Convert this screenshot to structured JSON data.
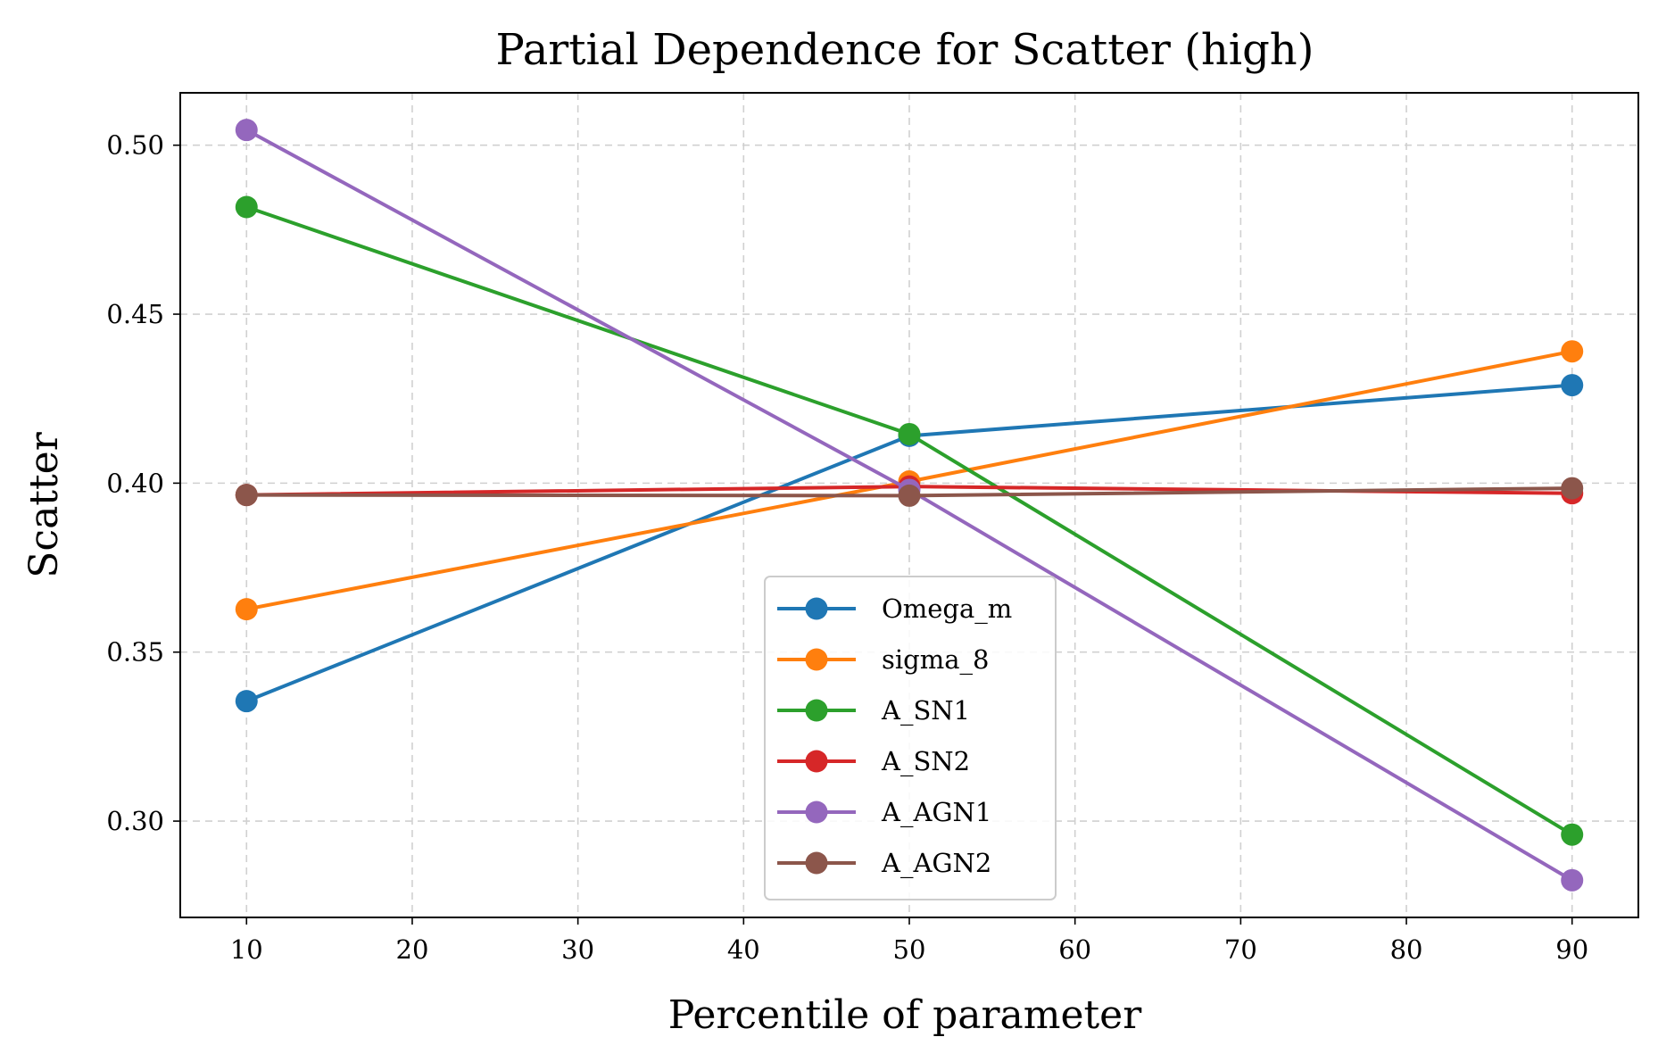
{
  "chart_data": {
    "type": "line",
    "title": "Partial Dependence for Scatter (high)",
    "xlabel": "Percentile of parameter",
    "ylabel": "Scatter",
    "x": [
      10,
      50,
      90
    ],
    "xlim": [
      6,
      94
    ],
    "ylim": [
      0.2715,
      0.5155
    ],
    "xticks": [
      10,
      20,
      30,
      40,
      50,
      60,
      70,
      80,
      90
    ],
    "xtick_labels": [
      "10",
      "20",
      "30",
      "40",
      "50",
      "60",
      "70",
      "80",
      "90"
    ],
    "yticks": [
      0.3,
      0.35,
      0.4,
      0.45,
      0.5
    ],
    "ytick_labels": [
      "0.30",
      "0.35",
      "0.40",
      "0.45",
      "0.50"
    ],
    "grid": true,
    "legend_position": "lower-center",
    "series": [
      {
        "name": "Omega_m",
        "color": "#1f77b4",
        "values": [
          0.3355,
          0.414,
          0.429
        ]
      },
      {
        "name": "sigma_8",
        "color": "#ff7f0e",
        "values": [
          0.3627,
          0.4005,
          0.439
        ]
      },
      {
        "name": "A_SN1",
        "color": "#2ca02c",
        "values": [
          0.4817,
          0.4145,
          0.296
        ]
      },
      {
        "name": "A_SN2",
        "color": "#d62728",
        "values": [
          0.3965,
          0.399,
          0.397
        ]
      },
      {
        "name": "A_AGN1",
        "color": "#9467bd",
        "values": [
          0.5045,
          0.398,
          0.2825
        ]
      },
      {
        "name": "A_AGN2",
        "color": "#8c564b",
        "values": [
          0.3965,
          0.3963,
          0.3985
        ]
      }
    ]
  }
}
